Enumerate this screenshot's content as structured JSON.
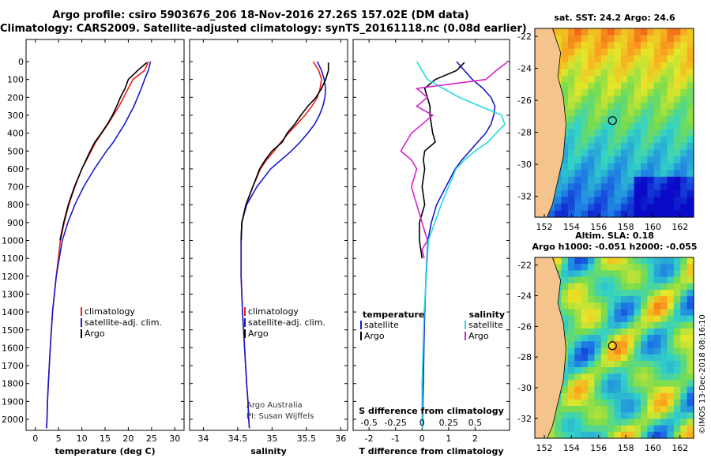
{
  "title_line1": "Argo profile: csiro 5903676_206 18-Nov-2016 27.26S 157.02E (DM data)",
  "title_line2": "Climatology: CARS2009. Satellite-adjusted climatology: synTS_20161118.nc (0.08d earlier)",
  "colors": {
    "climatology": "#e8201a",
    "satellite": "#1a1acc",
    "argo": "#000000",
    "satellite_s": "#22dde0",
    "argo_s": "#d820d0"
  },
  "chart_data": [
    {
      "type": "line",
      "xlabel": "temperature (deg C)",
      "xticks": [
        "0",
        "5",
        "10",
        "15",
        "20",
        "25",
        "30"
      ],
      "xlim": [
        -2,
        32
      ],
      "ylim": [
        2080,
        0
      ],
      "yticks": [
        "0",
        "100",
        "200",
        "300",
        "400",
        "500",
        "600",
        "700",
        "800",
        "900",
        "1000",
        "1100",
        "1200",
        "1300",
        "1400",
        "1500",
        "1600",
        "1700",
        "1800",
        "1900",
        "2000"
      ],
      "legend": [
        "climatology",
        "satellite-adj. clim.",
        "Argo"
      ],
      "series": [
        {
          "name": "climatology",
          "color_key": "climatology",
          "x": [
            24.3,
            23.5,
            21.0,
            20.0,
            19.0,
            18.0,
            16.8,
            15.6,
            14.3,
            13.0,
            12.0,
            11.0,
            10.0,
            8.5,
            7.2,
            6.2,
            5.4,
            4.5,
            3.7,
            3.2,
            2.8,
            2.6,
            2.5,
            2.4
          ],
          "y": [
            0,
            50,
            100,
            150,
            200,
            250,
            300,
            350,
            400,
            450,
            500,
            550,
            600,
            700,
            800,
            900,
            1000,
            1200,
            1400,
            1600,
            1800,
            1900,
            2000,
            2050
          ]
        },
        {
          "name": "satellite-adj. clim.",
          "color_key": "satellite",
          "x": [
            24.8,
            24.3,
            23.5,
            22.8,
            22.0,
            21.2,
            20.2,
            19.2,
            18.0,
            16.8,
            15.3,
            14.0,
            12.7,
            10.4,
            8.5,
            7.0,
            5.8,
            4.5,
            3.7,
            3.2,
            2.8,
            2.6,
            2.5,
            2.4
          ],
          "y": [
            0,
            50,
            100,
            150,
            200,
            250,
            300,
            350,
            400,
            450,
            500,
            550,
            600,
            700,
            800,
            900,
            1000,
            1200,
            1400,
            1600,
            1800,
            1900,
            2000,
            2050
          ]
        },
        {
          "name": "Argo",
          "color_key": "argo",
          "x": [
            24.0,
            22.0,
            20.0,
            19.3,
            18.3,
            17.5,
            16.6,
            15.5,
            14.2,
            12.8,
            11.8,
            10.9,
            10.0,
            8.4,
            7.1,
            6.1,
            5.3
          ],
          "y": [
            5,
            50,
            100,
            150,
            200,
            250,
            300,
            350,
            400,
            450,
            500,
            550,
            600,
            700,
            800,
            900,
            1000
          ]
        }
      ]
    },
    {
      "type": "line",
      "xlabel": "salinity",
      "xticks": [
        "34",
        "34.5",
        "35",
        "35.5",
        "36"
      ],
      "xlim": [
        33.8,
        36.1
      ],
      "ylim": [
        2080,
        0
      ],
      "legend": [
        "climatology",
        "satellite-adj. clim.",
        "Argo"
      ],
      "annotations": [
        "Argo Australia",
        "PI: Susan Wijffels"
      ],
      "series": [
        {
          "name": "climatology",
          "color_key": "climatology",
          "x": [
            35.6,
            35.68,
            35.72,
            35.7,
            35.66,
            35.58,
            35.48,
            35.36,
            35.24,
            35.13,
            35.03,
            34.92,
            34.83,
            34.72,
            34.62,
            34.56,
            34.55,
            34.55,
            34.57,
            34.6,
            34.63,
            34.65,
            34.66,
            34.67
          ],
          "y": [
            0,
            50,
            100,
            150,
            200,
            250,
            300,
            350,
            400,
            450,
            500,
            550,
            600,
            700,
            800,
            900,
            1000,
            1200,
            1400,
            1600,
            1800,
            1900,
            2000,
            2050
          ]
        },
        {
          "name": "satellite-adj. clim.",
          "color_key": "satellite",
          "x": [
            35.66,
            35.72,
            35.76,
            35.78,
            35.77,
            35.74,
            35.69,
            35.62,
            35.52,
            35.41,
            35.28,
            35.13,
            34.98,
            34.78,
            34.63,
            34.56,
            34.55,
            34.55,
            34.57,
            34.6,
            34.63,
            34.65,
            34.66,
            34.67
          ],
          "y": [
            0,
            50,
            100,
            150,
            200,
            250,
            300,
            350,
            400,
            450,
            500,
            550,
            600,
            700,
            800,
            900,
            1000,
            1200,
            1400,
            1600,
            1800,
            1900,
            2000,
            2050
          ]
        },
        {
          "name": "Argo",
          "color_key": "argo",
          "x": [
            35.82,
            35.82,
            35.78,
            35.72,
            35.64,
            35.52,
            35.42,
            35.33,
            35.22,
            35.15,
            35.0,
            34.9,
            34.82,
            34.72,
            34.62,
            34.56,
            34.55
          ],
          "y": [
            5,
            50,
            100,
            150,
            200,
            250,
            300,
            350,
            400,
            450,
            500,
            550,
            600,
            700,
            800,
            900,
            1000
          ]
        }
      ]
    },
    {
      "type": "line",
      "xlabel": "T difference from climatology",
      "xticks": [
        "-2",
        "-1",
        "0",
        "1",
        "2"
      ],
      "xlim": [
        -2.6,
        3.3
      ],
      "secondary_xlabel": "S difference from climatology",
      "secondary_xticks": [
        "-0.5",
        "-0.25",
        "0",
        "0.25",
        "0.5"
      ],
      "ylim": [
        2080,
        0
      ],
      "legend_left_title": "temperature",
      "legend_right_title": "salinity",
      "legend_left": [
        "satellite",
        "Argo"
      ],
      "legend_right": [
        "satellite",
        "Argo"
      ],
      "series": [
        {
          "name": "temperature satellite",
          "color_key": "satellite",
          "x": [
            1.3,
            1.6,
            1.9,
            2.3,
            2.6,
            2.75,
            2.7,
            2.6,
            2.4,
            2.1,
            1.8,
            1.5,
            1.25,
            0.9,
            0.55,
            0.35,
            0.22,
            0.15,
            0.1,
            0.07,
            0.05,
            0.03,
            0.02,
            0.01
          ],
          "y": [
            0,
            50,
            100,
            150,
            200,
            250,
            300,
            350,
            400,
            450,
            500,
            550,
            600,
            700,
            800,
            900,
            1000,
            1200,
            1400,
            1600,
            1800,
            1900,
            2000,
            2050
          ]
        },
        {
          "name": "temperature Argo",
          "color_key": "argo",
          "x": [
            1.6,
            1.3,
            0.5,
            0.1,
            0.2,
            0.3,
            0.3,
            0.35,
            0.4,
            0.5,
            0.1,
            0.05,
            0.1,
            0.0,
            0.1,
            -0.1,
            -0.1,
            -0.05,
            0.0
          ],
          "y": [
            5,
            50,
            100,
            150,
            200,
            250,
            300,
            350,
            400,
            450,
            500,
            550,
            600,
            700,
            800,
            900,
            1000,
            1050,
            1100
          ]
        },
        {
          "name": "salinity satellite",
          "color_key": "satellite_s",
          "x": [
            -0.05,
            0.0,
            0.05,
            0.2,
            0.35,
            0.55,
            0.75,
            0.78,
            0.7,
            0.62,
            0.5,
            0.4,
            0.32,
            0.25,
            0.18,
            0.12,
            0.06,
            0.04,
            0.02,
            0.01,
            0.0,
            0.0,
            0.0,
            0.0
          ],
          "y": [
            0,
            50,
            100,
            150,
            200,
            250,
            300,
            350,
            400,
            450,
            500,
            550,
            600,
            700,
            800,
            900,
            1000,
            1200,
            1400,
            1600,
            1800,
            1900,
            2000,
            2050
          ]
        },
        {
          "name": "salinity Argo",
          "color_key": "argo_s",
          "x": [
            0.8,
            0.7,
            0.6,
            -0.05,
            0.05,
            -0.05,
            0.1,
            0.0,
            -0.1,
            -0.15,
            -0.2,
            -0.1,
            -0.05,
            -0.1,
            -0.05,
            0.0,
            0.05,
            0.0,
            0.02
          ],
          "y": [
            5,
            50,
            100,
            150,
            200,
            250,
            300,
            350,
            400,
            450,
            500,
            550,
            600,
            700,
            800,
            900,
            1000,
            1050,
            1100
          ]
        }
      ]
    },
    {
      "type": "heatmap",
      "title": "sat. SST: 24.2 Argo: 24.6",
      "xticks": [
        "152",
        "154",
        "156",
        "158",
        "160",
        "162"
      ],
      "yticks": [
        "-22",
        "-24",
        "-26",
        "-28",
        "-30",
        "-32"
      ],
      "xlim": [
        151.3,
        163
      ],
      "ylim": [
        -33.3,
        -21.5
      ],
      "marker": {
        "lon": 157.02,
        "lat": -27.26
      }
    },
    {
      "type": "heatmap",
      "title": "Altim. SLA: 0.18",
      "subtitle": "Argo h1000: -0.051 h2000: -0.055",
      "xticks": [
        "152",
        "154",
        "156",
        "158",
        "160",
        "162"
      ],
      "yticks": [
        "-22",
        "-24",
        "-26",
        "-28",
        "-30",
        "-32"
      ],
      "xlim": [
        151.3,
        163
      ],
      "ylim": [
        -33.3,
        -21.5
      ],
      "marker": {
        "lon": 157.02,
        "lat": -27.26
      }
    }
  ],
  "stamp": "©IMOS 13-Dec-2018 08:16:10"
}
